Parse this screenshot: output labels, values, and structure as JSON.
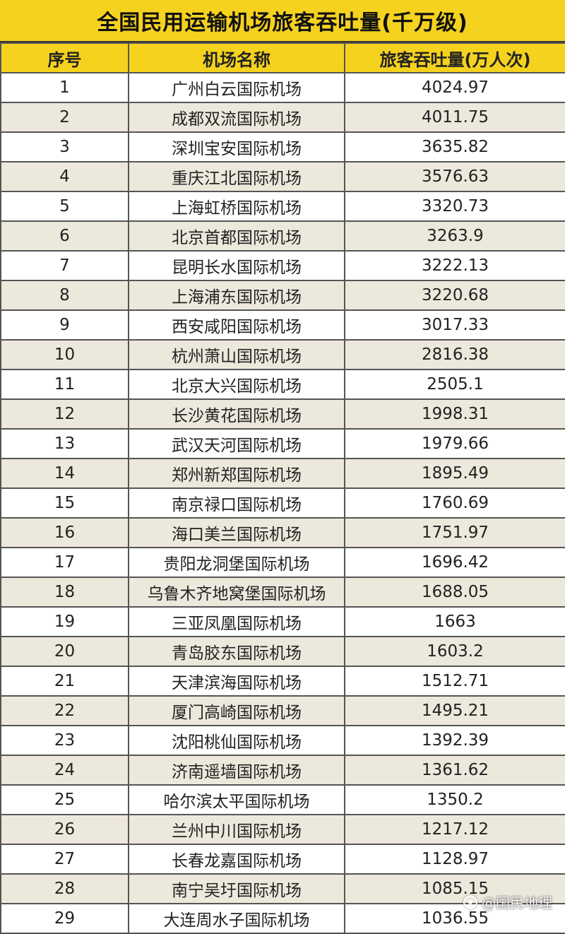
{
  "title": "全国民用运输机场旅客吞吐量(千万级)",
  "headers": {
    "rank": "序号",
    "name": "机场名称",
    "passengers": "旅客吞吐量(万人次)"
  },
  "rows": [
    {
      "rank": "1",
      "name": "广州白云国际机场",
      "passengers": "4024.97"
    },
    {
      "rank": "2",
      "name": "成都双流国际机场",
      "passengers": "4011.75"
    },
    {
      "rank": "3",
      "name": "深圳宝安国际机场",
      "passengers": "3635.82"
    },
    {
      "rank": "4",
      "name": "重庆江北国际机场",
      "passengers": "3576.63"
    },
    {
      "rank": "5",
      "name": "上海虹桥国际机场",
      "passengers": "3320.73"
    },
    {
      "rank": "6",
      "name": "北京首都国际机场",
      "passengers": "3263.9"
    },
    {
      "rank": "7",
      "name": "昆明长水国际机场",
      "passengers": "3222.13"
    },
    {
      "rank": "8",
      "name": "上海浦东国际机场",
      "passengers": "3220.68"
    },
    {
      "rank": "9",
      "name": "西安咸阳国际机场",
      "passengers": "3017.33"
    },
    {
      "rank": "10",
      "name": "杭州萧山国际机场",
      "passengers": "2816.38"
    },
    {
      "rank": "11",
      "name": "北京大兴国际机场",
      "passengers": "2505.1"
    },
    {
      "rank": "12",
      "name": "长沙黄花国际机场",
      "passengers": "1998.31"
    },
    {
      "rank": "13",
      "name": "武汉天河国际机场",
      "passengers": "1979.66"
    },
    {
      "rank": "14",
      "name": "郑州新郑国际机场",
      "passengers": "1895.49"
    },
    {
      "rank": "15",
      "name": "南京禄口国际机场",
      "passengers": "1760.69"
    },
    {
      "rank": "16",
      "name": "海口美兰国际机场",
      "passengers": "1751.97"
    },
    {
      "rank": "17",
      "name": "贵阳龙洞堡国际机场",
      "passengers": "1696.42"
    },
    {
      "rank": "18",
      "name": "乌鲁木齐地窝堡国际机场",
      "passengers": "1688.05"
    },
    {
      "rank": "19",
      "name": "三亚凤凰国际机场",
      "passengers": "1663"
    },
    {
      "rank": "20",
      "name": "青岛胶东国际机场",
      "passengers": "1603.2"
    },
    {
      "rank": "21",
      "name": "天津滨海国际机场",
      "passengers": "1512.71"
    },
    {
      "rank": "22",
      "name": "厦门高崎国际机场",
      "passengers": "1495.21"
    },
    {
      "rank": "23",
      "name": "沈阳桃仙国际机场",
      "passengers": "1392.39"
    },
    {
      "rank": "24",
      "name": "济南遥墙国际机场",
      "passengers": "1361.62"
    },
    {
      "rank": "25",
      "name": "哈尔滨太平国际机场",
      "passengers": "1350.2"
    },
    {
      "rank": "26",
      "name": "兰州中川国际机场",
      "passengers": "1217.12"
    },
    {
      "rank": "27",
      "name": "长春龙嘉国际机场",
      "passengers": "1128.97"
    },
    {
      "rank": "28",
      "name": "南宁吴圩国际机场",
      "passengers": "1085.15"
    },
    {
      "rank": "29",
      "name": "大连周水子国际机场",
      "passengers": "1036.55"
    }
  ],
  "watermark": {
    "text": "@国民地理",
    "icon": "circle-logo-icon"
  },
  "colors": {
    "header_bg": "#f5d21e",
    "row_alt_bg": "#ede8dc",
    "border": "#555555"
  }
}
